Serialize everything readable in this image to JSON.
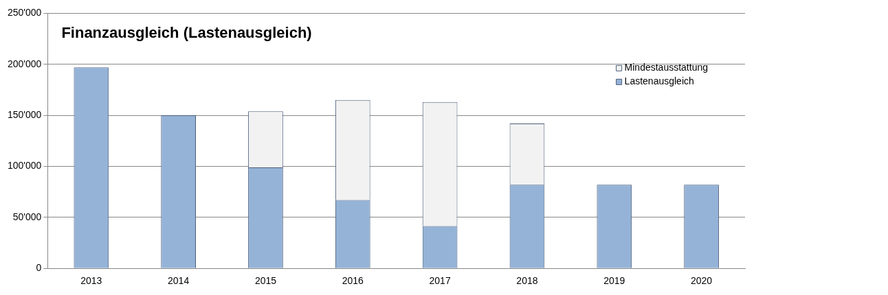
{
  "chart_data": {
    "type": "bar",
    "title": "Finanzausgleich (Lastenausgleich)",
    "categories": [
      "2013",
      "2014",
      "2015",
      "2016",
      "2017",
      "2018",
      "2019",
      "2020"
    ],
    "stacked": true,
    "series": [
      {
        "name": "Lastenausgleich",
        "color": "#95b3d7",
        "values": [
          197000,
          150000,
          99000,
          67000,
          41500,
          82000,
          82000,
          82000
        ]
      },
      {
        "name": "Mindestausstattung",
        "color": "#f2f2f2",
        "values": [
          null,
          null,
          55000,
          98000,
          121500,
          60000,
          null,
          null
        ]
      }
    ],
    "ylim": [
      0,
      250000
    ],
    "yticks": [
      {
        "value": 0,
        "label": "0"
      },
      {
        "value": 50000,
        "label": "50'000"
      },
      {
        "value": 100000,
        "label": "100'000"
      },
      {
        "value": 150000,
        "label": "150'000"
      },
      {
        "value": 200000,
        "label": "200'000"
      },
      {
        "value": 250000,
        "label": "250'000"
      }
    ],
    "grid": "y",
    "legend": "top right"
  }
}
